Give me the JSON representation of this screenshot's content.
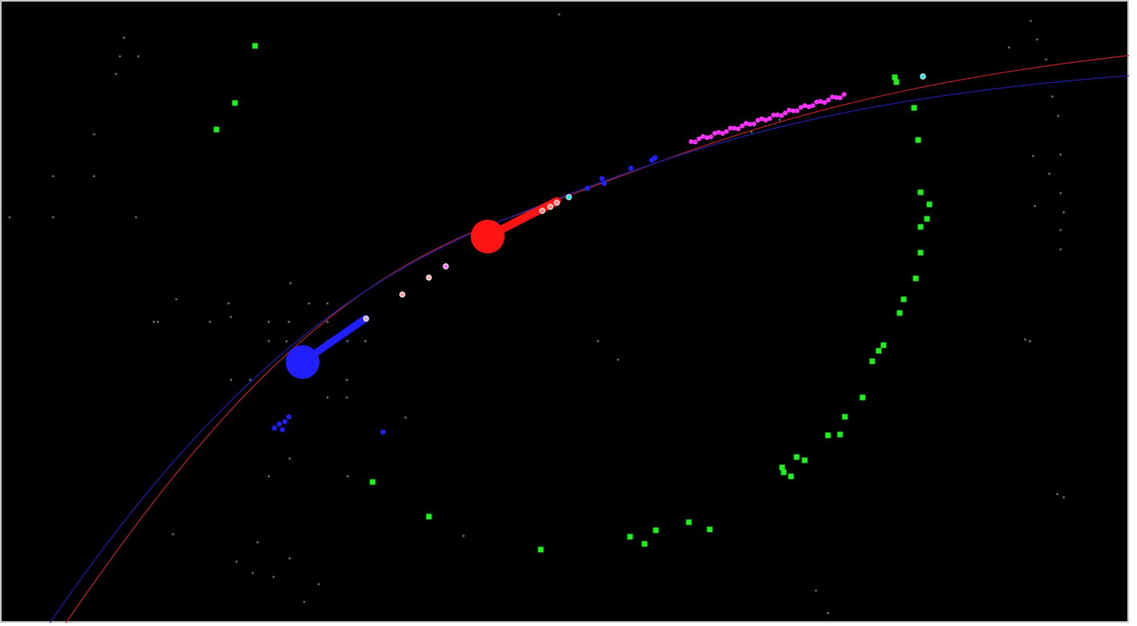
{
  "view": {
    "background": "#000000",
    "frame_color": "#c8c8c8"
  },
  "tracks": [
    {
      "name": "red-track",
      "color": "#b22222"
    },
    {
      "name": "blue-track",
      "color": "#1e1ea0"
    }
  ],
  "objects": {
    "blue_marker_color": "#1f1fff",
    "red_marker_color": "#ff1414",
    "magenta_hits_color": "#ff33ff",
    "green_hits_color": "#22ee22",
    "faint_hits_color": "#5a7a7a"
  }
}
